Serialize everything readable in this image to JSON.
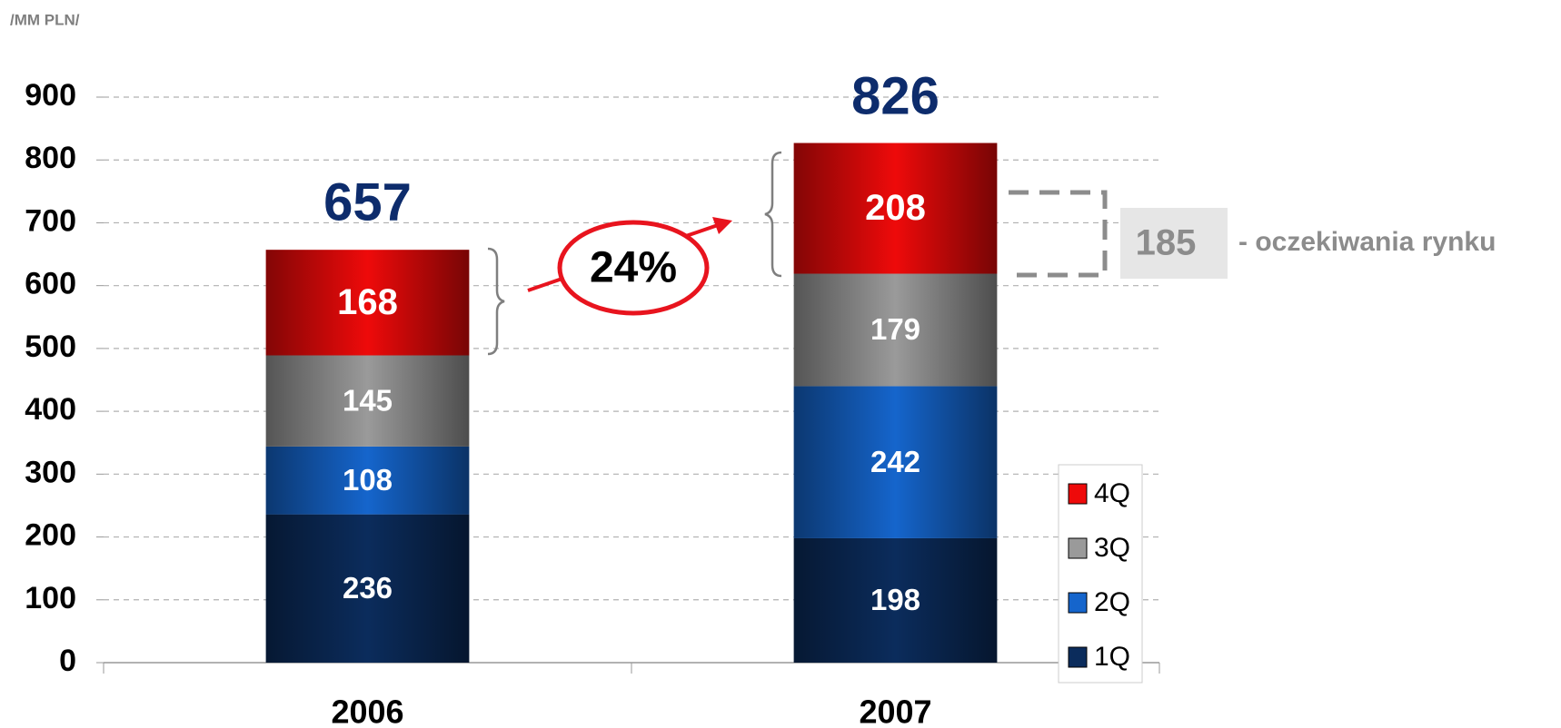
{
  "chart_data": {
    "type": "stacked_bar",
    "unit_label": "/MM PLN/",
    "categories": [
      "2006",
      "2007"
    ],
    "series": [
      {
        "name": "1Q",
        "color": "#0b2c5c",
        "values": [
          236,
          198
        ]
      },
      {
        "name": "2Q",
        "color": "#1565cc",
        "values": [
          108,
          242
        ]
      },
      {
        "name": "3Q",
        "color": "#9a9a9a",
        "values": [
          145,
          179
        ]
      },
      {
        "name": "4Q",
        "color": "#ee0a0a",
        "values": [
          168,
          208
        ]
      }
    ],
    "totals": [
      657,
      826
    ],
    "growth_label": "24%",
    "expectation_value": 185,
    "expectation_label": "- oczekiwania rynku",
    "ylim": [
      0,
      900
    ],
    "yticks": [
      0,
      100,
      200,
      300,
      400,
      500,
      600,
      700,
      800,
      900
    ],
    "grid": true,
    "legend": "right"
  }
}
